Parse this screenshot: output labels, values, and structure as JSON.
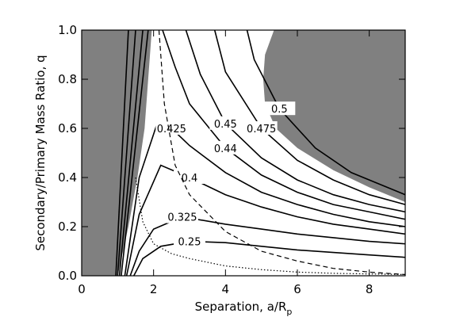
{
  "chart_data": {
    "type": "contour",
    "x_label": "Separation, a/R",
    "x_label_sub": "p",
    "y_label": "Secondary/Primary Mass Ratio, q",
    "xlim": [
      0,
      9
    ],
    "ylim": [
      0,
      1
    ],
    "xticks": [
      0,
      2,
      4,
      6,
      8
    ],
    "yticks": [
      {
        "value": 0,
        "label": "0.0"
      },
      0.2,
      0.4,
      0.6,
      0.8,
      {
        "value": 1,
        "label": "1.0"
      }
    ],
    "region_color": "#808080",
    "regions": [
      {
        "x": [
          0,
          1.0,
          1.3,
          1.55,
          1.75,
          1.85,
          1.95,
          0
        ],
        "y": [
          0,
          0,
          0.2,
          0.4,
          0.6,
          0.8,
          1.0,
          1.0
        ]
      },
      {
        "x": [
          5.35,
          5.1,
          5.05,
          5.1,
          5.4,
          6,
          7,
          8,
          9,
          9
        ],
        "y": [
          1.0,
          0.9,
          0.8,
          0.7,
          0.6,
          0.52,
          0.43,
          0.36,
          0.3,
          1.0
        ]
      }
    ],
    "contours": [
      {
        "label": "0.25",
        "x": [
          1.45,
          1.7,
          2.2,
          3,
          4,
          5,
          6,
          7,
          8,
          9
        ],
        "y": [
          0,
          0.07,
          0.12,
          0.14,
          0.135,
          0.12,
          0.105,
          0.095,
          0.085,
          0.075
        ]
      },
      {
        "label": "0.325",
        "x": [
          1.35,
          1.6,
          2.0,
          2.8,
          4,
          5,
          6,
          7,
          8,
          9
        ],
        "y": [
          0,
          0.1,
          0.19,
          0.24,
          0.21,
          0.19,
          0.17,
          0.155,
          0.14,
          0.13
        ]
      },
      {
        "label": "0.4",
        "x": [
          1.25,
          1.6,
          2.2,
          3,
          4,
          5,
          6,
          7,
          8,
          9
        ],
        "y": [
          0,
          0.25,
          0.45,
          0.4,
          0.33,
          0.28,
          0.24,
          0.21,
          0.19,
          0.17
        ]
      },
      {
        "label": "0.425",
        "x": [
          1.2,
          1.6,
          2.1,
          2.5,
          3,
          4,
          5,
          6,
          7,
          8,
          9
        ],
        "y": [
          0,
          0.4,
          0.62,
          0.6,
          0.53,
          0.42,
          0.34,
          0.29,
          0.25,
          0.22,
          0.2
        ]
      },
      {
        "label": "0.44",
        "x": [
          2.25,
          2.6,
          3,
          4,
          5,
          6,
          7,
          8,
          9
        ],
        "y": [
          1.0,
          0.85,
          0.7,
          0.52,
          0.41,
          0.34,
          0.29,
          0.26,
          0.23
        ]
      },
      {
        "label": "0.45",
        "x": [
          2.9,
          3.3,
          4,
          5,
          6,
          7,
          8,
          9
        ],
        "y": [
          1.0,
          0.82,
          0.62,
          0.48,
          0.39,
          0.33,
          0.29,
          0.26
        ]
      },
      {
        "label": "0.475",
        "x": [
          3.7,
          4,
          5,
          6,
          7,
          8,
          9
        ],
        "y": [
          1.0,
          0.83,
          0.6,
          0.47,
          0.39,
          0.33,
          0.29
        ]
      },
      {
        "label": "0.5",
        "x": [
          4.6,
          4.8,
          5.5,
          6.5,
          7.5,
          9
        ],
        "y": [
          1.0,
          0.88,
          0.68,
          0.52,
          0.42,
          0.33
        ]
      },
      {
        "x": [
          0.95,
          1.3
        ],
        "y": [
          0,
          1.0
        ]
      },
      {
        "x": [
          1.0,
          1.5
        ],
        "y": [
          0,
          1.0
        ]
      },
      {
        "x": [
          1.05,
          1.7
        ],
        "y": [
          0,
          1.0
        ]
      },
      {
        "x": [
          1.1,
          1.85
        ],
        "y": [
          0,
          1.0
        ]
      },
      {
        "style": "dashed",
        "x": [
          2.15,
          2.3,
          2.6,
          3,
          4,
          5,
          6,
          7,
          8,
          9
        ],
        "y": [
          1.0,
          0.7,
          0.45,
          0.33,
          0.18,
          0.1,
          0.06,
          0.03,
          0.015,
          0.005
        ]
      },
      {
        "style": "dotted",
        "x": [
          1.5,
          1.7,
          2,
          2.5,
          3,
          4,
          5,
          6,
          7,
          9
        ],
        "y": [
          0.4,
          0.22,
          0.13,
          0.09,
          0.07,
          0.04,
          0.025,
          0.015,
          0.01,
          0.005
        ]
      }
    ]
  }
}
